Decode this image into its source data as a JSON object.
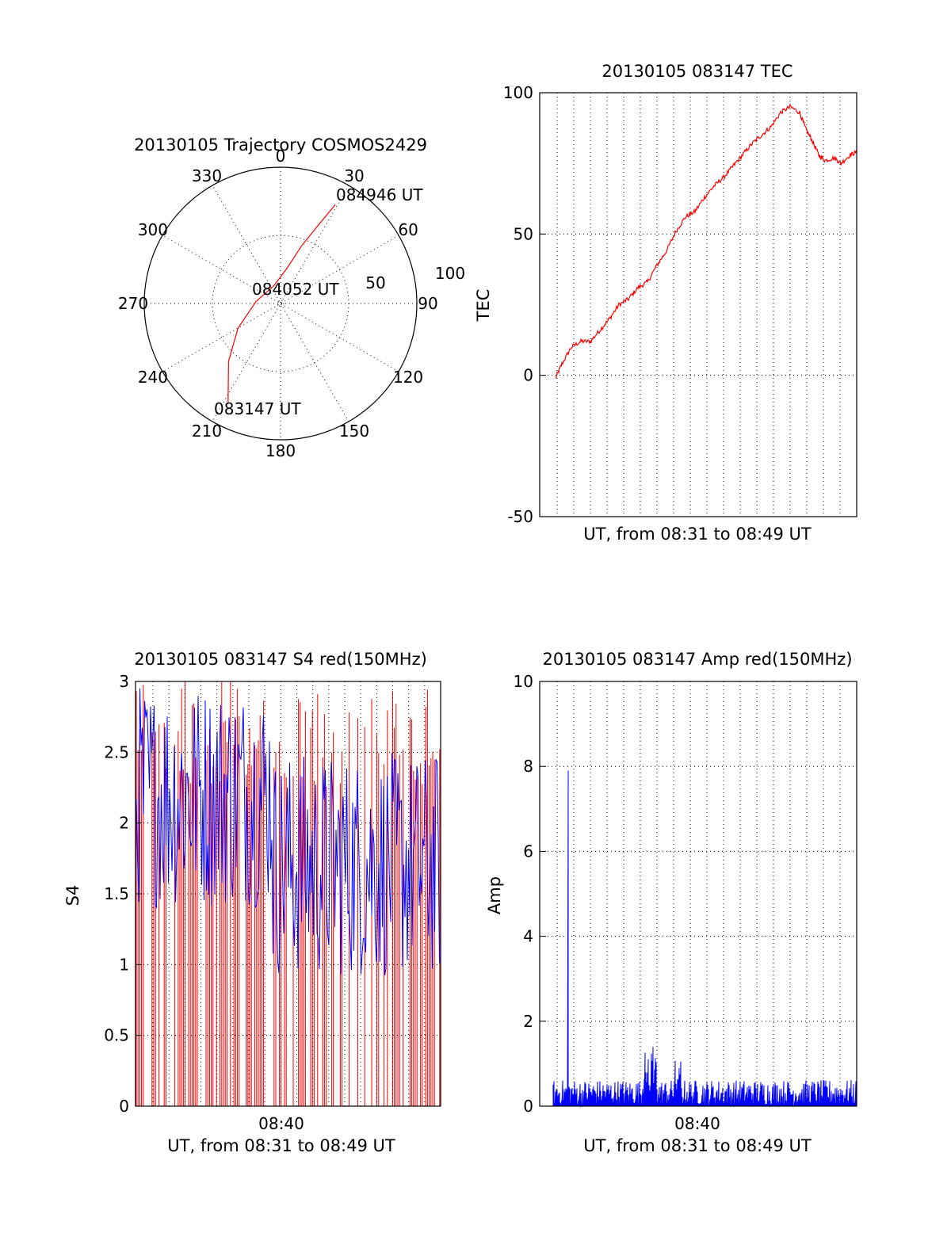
{
  "colors": {
    "red": "#ff0000",
    "blue": "#0000ff",
    "axis": "#000000",
    "background": "#ffffff"
  },
  "chart_data": [
    {
      "type": "scatter",
      "subtype": "polar-trajectory",
      "title": "20130105 Trajectory COSMOS2429",
      "azimuth_labels": [
        "0",
        "30",
        "60",
        "90",
        "120",
        "150",
        "180",
        "210",
        "240",
        "270",
        "300",
        "330"
      ],
      "radius_labels": [
        "50",
        "100"
      ],
      "grid": true,
      "series": [
        {
          "color": "#ff0000",
          "points": [
            {
              "az": 208,
              "r": 82
            },
            {
              "az": 222,
              "r": 57
            },
            {
              "az": 240,
              "r": 36
            },
            {
              "az": 275,
              "r": 18
            },
            {
              "az": 340,
              "r": 14
            },
            {
              "az": 10,
              "r": 26
            },
            {
              "az": 20,
              "r": 45
            },
            {
              "az": 26,
              "r": 65
            },
            {
              "az": 29,
              "r": 83
            }
          ]
        }
      ],
      "annotations": [
        {
          "text": "083147 UT",
          "az": 208,
          "r": 82
        },
        {
          "text": "084052 UT",
          "az": 0,
          "r": 0
        },
        {
          "text": "084946 UT",
          "az": 29,
          "r": 83
        }
      ]
    },
    {
      "type": "line",
      "title": "20130105 083147 TEC",
      "xlabel": "UT, from 08:31 to 08:49 UT",
      "ylabel": "TEC",
      "ylim": [
        -50,
        100
      ],
      "yticks": [
        "-50",
        "0",
        "50",
        "100"
      ],
      "grid": true,
      "series": [
        {
          "color": "#ff0000",
          "points": [
            [
              0.05,
              -1
            ],
            [
              0.07,
              4
            ],
            [
              0.1,
              10
            ],
            [
              0.13,
              12
            ],
            [
              0.16,
              12
            ],
            [
              0.19,
              16
            ],
            [
              0.22,
              20
            ],
            [
              0.25,
              25
            ],
            [
              0.28,
              27
            ],
            [
              0.31,
              31
            ],
            [
              0.34,
              33
            ],
            [
              0.37,
              39
            ],
            [
              0.4,
              44
            ],
            [
              0.43,
              51
            ],
            [
              0.46,
              56
            ],
            [
              0.49,
              58
            ],
            [
              0.52,
              63
            ],
            [
              0.55,
              67
            ],
            [
              0.58,
              70
            ],
            [
              0.61,
              74
            ],
            [
              0.64,
              78
            ],
            [
              0.67,
              82
            ],
            [
              0.7,
              85
            ],
            [
              0.73,
              88
            ],
            [
              0.76,
              93
            ],
            [
              0.79,
              95
            ],
            [
              0.82,
              93
            ],
            [
              0.84,
              87
            ],
            [
              0.86,
              83
            ],
            [
              0.88,
              78
            ],
            [
              0.9,
              76
            ],
            [
              0.93,
              77
            ],
            [
              0.95,
              75
            ],
            [
              0.98,
              78
            ],
            [
              1.0,
              79
            ]
          ]
        }
      ]
    },
    {
      "type": "line",
      "title": "20130105 083147 S4 red(150MHz)",
      "xlabel": "UT, from 08:31 to 08:49 UT",
      "ylabel": "S4",
      "ylim": [
        0,
        3
      ],
      "yticks": [
        "0",
        "0.5",
        "1",
        "1.5",
        "2",
        "2.5",
        "3"
      ],
      "xticks": [
        "08:40"
      ],
      "grid": true,
      "series": [
        {
          "color": "#ff0000",
          "description_range": [
            0,
            3
          ]
        },
        {
          "color": "#0000ff",
          "description_range": [
            0.9,
            3
          ]
        }
      ]
    },
    {
      "type": "line",
      "title": "20130105 083147 Amp red(150MHz)",
      "xlabel": "UT, from 08:31 to 08:49 UT",
      "ylabel": "Amp",
      "ylim": [
        0,
        10
      ],
      "yticks": [
        "0",
        "2",
        "4",
        "6",
        "8",
        "10"
      ],
      "xticks": [
        "08:40"
      ],
      "grid": true,
      "series": [
        {
          "color": "#0000ff",
          "peak": 7.9,
          "baseline_range": [
            0.3,
            0.8
          ]
        }
      ]
    }
  ]
}
